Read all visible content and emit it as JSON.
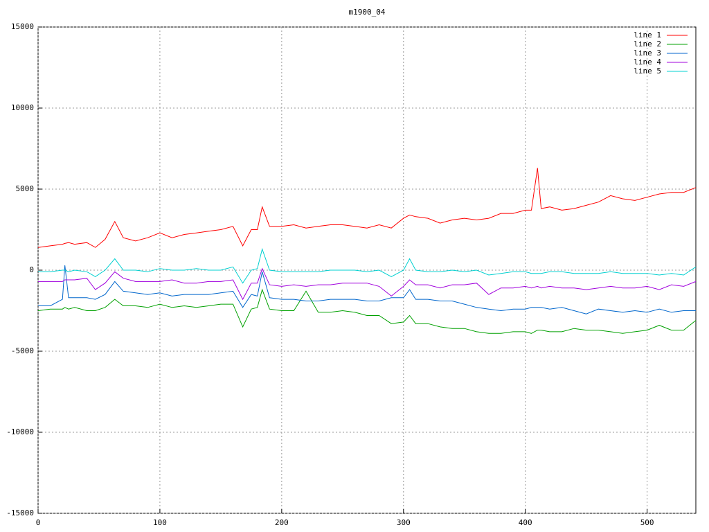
{
  "chart_data": {
    "type": "line",
    "title": "m1900_04",
    "x": [
      0,
      10,
      20,
      22,
      25,
      30,
      40,
      47,
      55,
      63,
      70,
      80,
      90,
      100,
      110,
      120,
      130,
      140,
      150,
      160,
      168,
      175,
      180,
      184,
      190,
      200,
      210,
      220,
      230,
      240,
      250,
      260,
      270,
      280,
      290,
      300,
      305,
      310,
      320,
      330,
      340,
      350,
      360,
      370,
      380,
      390,
      400,
      405,
      410,
      413,
      420,
      430,
      440,
      450,
      460,
      470,
      480,
      490,
      500,
      510,
      520,
      530,
      540
    ],
    "series": [
      {
        "name": "line 1",
        "color": "#ff0000",
        "values": [
          1400,
          1500,
          1600,
          1650,
          1700,
          1600,
          1700,
          1400,
          1900,
          3000,
          2000,
          1800,
          2000,
          2300,
          2000,
          2200,
          2300,
          2400,
          2500,
          2700,
          1500,
          2500,
          2500,
          3900,
          2700,
          2700,
          2800,
          2600,
          2700,
          2800,
          2800,
          2700,
          2600,
          2800,
          2600,
          3200,
          3400,
          3300,
          3200,
          2900,
          3100,
          3200,
          3100,
          3200,
          3500,
          3500,
          3700,
          3700,
          6300,
          3800,
          3900,
          3700,
          3800,
          4000,
          4200,
          4600,
          4400,
          4300,
          4500,
          4700,
          4800,
          4800,
          5100
        ]
      },
      {
        "name": "line 2",
        "color": "#00a000",
        "values": [
          -2500,
          -2400,
          -2400,
          -2300,
          -2400,
          -2300,
          -2500,
          -2500,
          -2300,
          -1800,
          -2200,
          -2200,
          -2300,
          -2100,
          -2300,
          -2200,
          -2300,
          -2200,
          -2100,
          -2100,
          -3500,
          -2400,
          -2300,
          -1200,
          -2400,
          -2500,
          -2500,
          -1300,
          -2600,
          -2600,
          -2500,
          -2600,
          -2800,
          -2800,
          -3300,
          -3200,
          -2800,
          -3300,
          -3300,
          -3500,
          -3600,
          -3600,
          -3800,
          -3900,
          -3900,
          -3800,
          -3800,
          -3900,
          -3700,
          -3700,
          -3800,
          -3800,
          -3600,
          -3700,
          -3700,
          -3800,
          -3900,
          -3800,
          -3700,
          -3400,
          -3700,
          -3700,
          -3100
        ]
      },
      {
        "name": "line 3",
        "color": "#0066cc",
        "values": [
          -2200,
          -2200,
          -1800,
          300,
          -1700,
          -1700,
          -1700,
          -1800,
          -1500,
          -700,
          -1300,
          -1400,
          -1500,
          -1400,
          -1600,
          -1500,
          -1500,
          -1500,
          -1400,
          -1300,
          -2300,
          -1500,
          -1600,
          -100,
          -1700,
          -1800,
          -1800,
          -1900,
          -1900,
          -1800,
          -1800,
          -1800,
          -1900,
          -1900,
          -1700,
          -1700,
          -1200,
          -1800,
          -1800,
          -1900,
          -1900,
          -2100,
          -2300,
          -2400,
          -2500,
          -2400,
          -2400,
          -2300,
          -2300,
          -2300,
          -2400,
          -2300,
          -2500,
          -2700,
          -2400,
          -2500,
          -2600,
          -2500,
          -2600,
          -2400,
          -2600,
          -2500,
          -2500
        ]
      },
      {
        "name": "line 4",
        "color": "#a000dd",
        "values": [
          -700,
          -700,
          -700,
          -600,
          -600,
          -600,
          -500,
          -1200,
          -800,
          -100,
          -500,
          -700,
          -700,
          -700,
          -600,
          -800,
          -800,
          -700,
          -700,
          -600,
          -1800,
          -800,
          -800,
          100,
          -900,
          -1000,
          -900,
          -1000,
          -900,
          -900,
          -800,
          -800,
          -800,
          -1000,
          -1600,
          -1000,
          -600,
          -900,
          -900,
          -1100,
          -900,
          -900,
          -800,
          -1500,
          -1100,
          -1100,
          -1000,
          -1100,
          -1000,
          -1100,
          -1000,
          -1100,
          -1100,
          -1200,
          -1100,
          -1000,
          -1100,
          -1100,
          -1000,
          -1200,
          -900,
          -1000,
          -700
        ]
      },
      {
        "name": "line 5",
        "color": "#00d0d0",
        "values": [
          -100,
          -100,
          0,
          0,
          -100,
          0,
          -100,
          -400,
          0,
          700,
          0,
          0,
          -100,
          100,
          0,
          0,
          100,
          0,
          0,
          200,
          -800,
          0,
          100,
          1300,
          0,
          -100,
          -100,
          -100,
          -100,
          0,
          0,
          0,
          -100,
          0,
          -400,
          0,
          700,
          0,
          -100,
          -100,
          0,
          -100,
          0,
          -300,
          -200,
          -100,
          -100,
          -200,
          -200,
          -200,
          -100,
          -100,
          -200,
          -200,
          -200,
          -100,
          -200,
          -200,
          -200,
          -300,
          -200,
          -300,
          200
        ]
      }
    ],
    "xlim": [
      0,
      540
    ],
    "xticks": [
      0,
      100,
      200,
      300,
      400,
      500
    ],
    "ylim": [
      -15000,
      15000
    ],
    "yticks": [
      -15000,
      -10000,
      -5000,
      0,
      5000,
      10000,
      15000
    ],
    "grid": true,
    "legend": "top-right"
  }
}
